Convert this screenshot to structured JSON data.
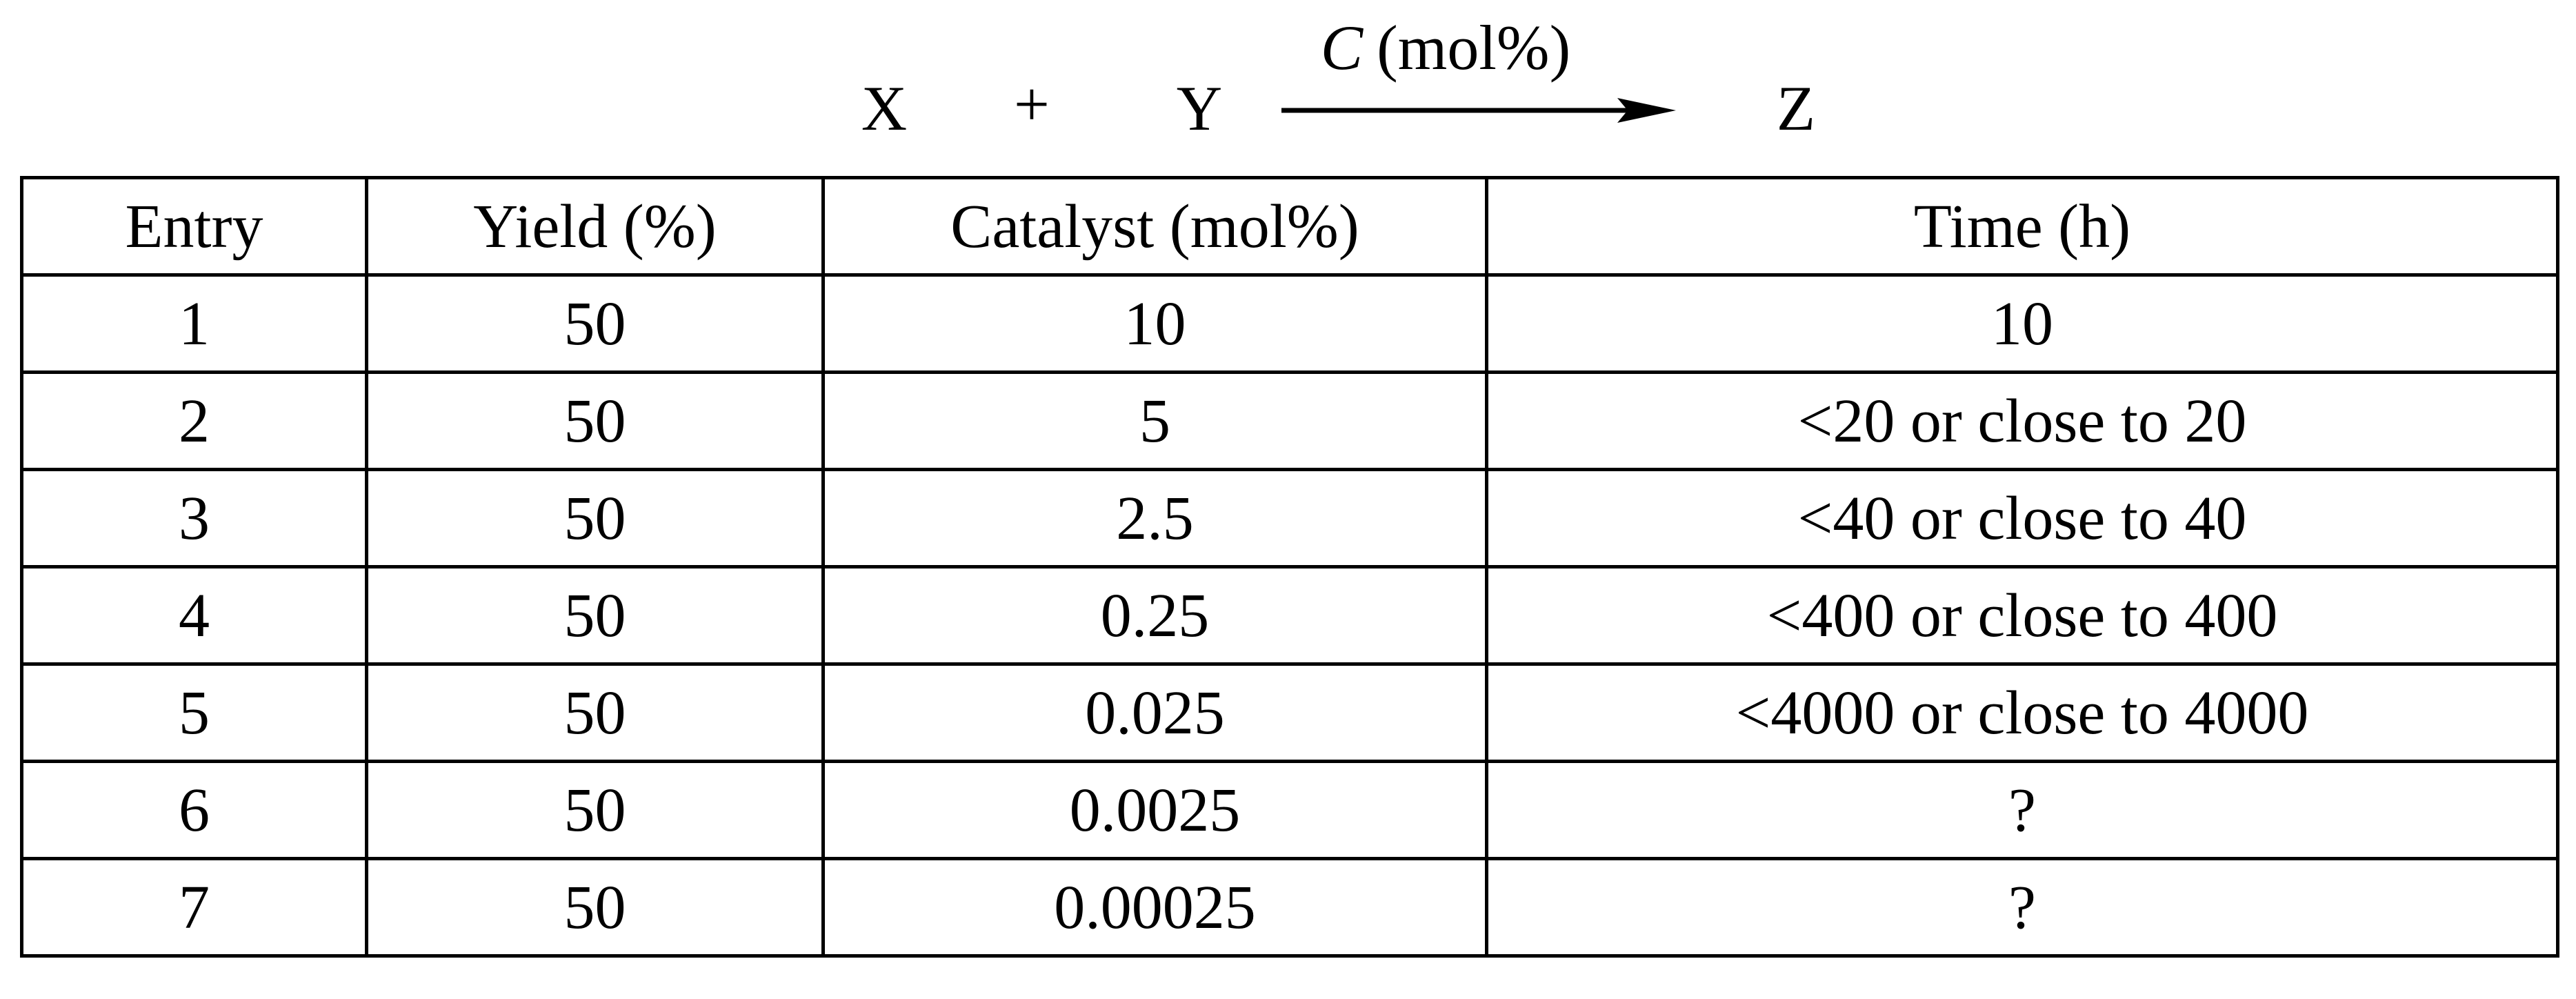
{
  "reaction": {
    "reactants": [
      "X",
      "Y"
    ],
    "plus": "+",
    "catalyst": {
      "symbol": "C",
      "unit": "(mol%)"
    },
    "product": "Z"
  },
  "table": {
    "headers": [
      "Entry",
      "Yield (%)",
      "Catalyst (mol%)",
      "Time (h)"
    ],
    "rows": [
      [
        "1",
        "50",
        "10",
        "10"
      ],
      [
        "2",
        "50",
        "5",
        "<20 or close to 20"
      ],
      [
        "3",
        "50",
        "2.5",
        "<40 or close to 40"
      ],
      [
        "4",
        "50",
        "0.25",
        "<400 or close to 400"
      ],
      [
        "5",
        "50",
        "0.025",
        "<4000 or close to 4000"
      ],
      [
        "6",
        "50",
        "0.0025",
        "?"
      ],
      [
        "7",
        "50",
        "0.00025",
        "?"
      ]
    ]
  }
}
